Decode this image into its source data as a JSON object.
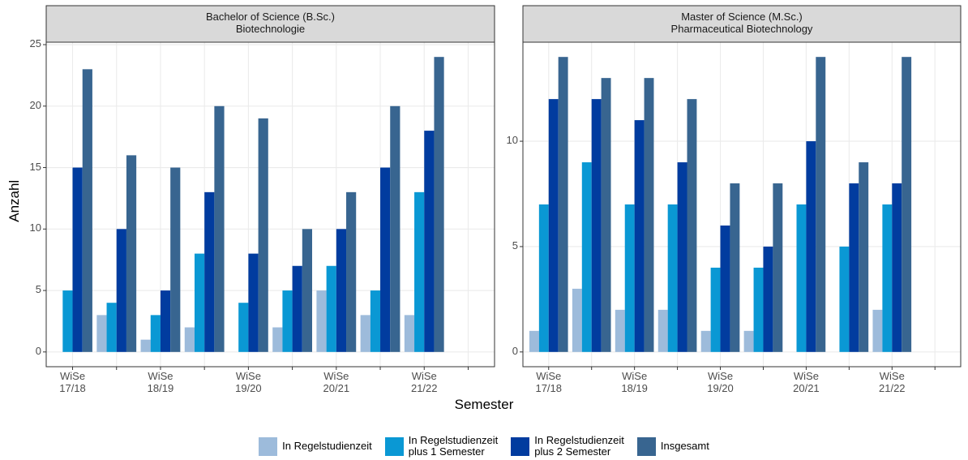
{
  "x_label": "Semester",
  "y_label": "Anzahl",
  "chart_data": [
    {
      "type": "bar",
      "title": "Bachelor of Science (B.Sc.)\nBiotechnologie",
      "categories": [
        "WiSe\n17/18",
        null,
        "WiSe\n18/19",
        null,
        "WiSe\n19/20",
        null,
        "WiSe\n20/21",
        null,
        "WiSe\n21/22",
        null
      ],
      "series": [
        {
          "name": "In Regelstudienzeit",
          "color": "#9dbbdb",
          "values": [
            null,
            3,
            1,
            2,
            null,
            2,
            5,
            3,
            3,
            null
          ]
        },
        {
          "name": "In Regelstudienzeit\nplus 1 Semester",
          "color": "#0a98d4",
          "values": [
            5,
            4,
            3,
            8,
            4,
            5,
            7,
            5,
            13,
            null
          ]
        },
        {
          "name": "In Regelstudienzeit\nplus 2 Semester",
          "color": "#013c9f",
          "values": [
            15,
            10,
            5,
            13,
            8,
            7,
            10,
            15,
            18,
            null
          ]
        },
        {
          "name": "Insgesamt",
          "color": "#386590",
          "values": [
            23,
            16,
            15,
            20,
            19,
            10,
            13,
            20,
            24,
            null
          ]
        }
      ],
      "ylim": [
        -1.2,
        25.2
      ],
      "yticks": [
        0,
        5,
        10,
        15,
        20,
        25
      ],
      "grid": true
    },
    {
      "type": "bar",
      "title": "Master of Science (M.Sc.)\nPharmaceutical Biotechnology",
      "categories": [
        "WiSe\n17/18",
        null,
        "WiSe\n18/19",
        null,
        "WiSe\n19/20",
        null,
        "WiSe\n20/21",
        null,
        "WiSe\n21/22",
        null
      ],
      "series": [
        {
          "name": "In Regelstudienzeit",
          "color": "#9dbbdb",
          "values": [
            1,
            3,
            2,
            2,
            1,
            1,
            null,
            null,
            2,
            null
          ]
        },
        {
          "name": "In Regelstudienzeit\nplus 1 Semester",
          "color": "#0a98d4",
          "values": [
            7,
            9,
            7,
            7,
            4,
            4,
            7,
            5,
            7,
            null
          ]
        },
        {
          "name": "In Regelstudienzeit\nplus 2 Semester",
          "color": "#013c9f",
          "values": [
            12,
            12,
            11,
            9,
            6,
            5,
            10,
            8,
            8,
            null
          ]
        },
        {
          "name": "Insgesamt",
          "color": "#386590",
          "values": [
            14,
            13,
            13,
            12,
            8,
            8,
            14,
            9,
            14,
            null
          ]
        }
      ],
      "ylim": [
        -0.7,
        14.7
      ],
      "yticks": [
        0,
        5,
        10
      ],
      "grid": true
    }
  ]
}
